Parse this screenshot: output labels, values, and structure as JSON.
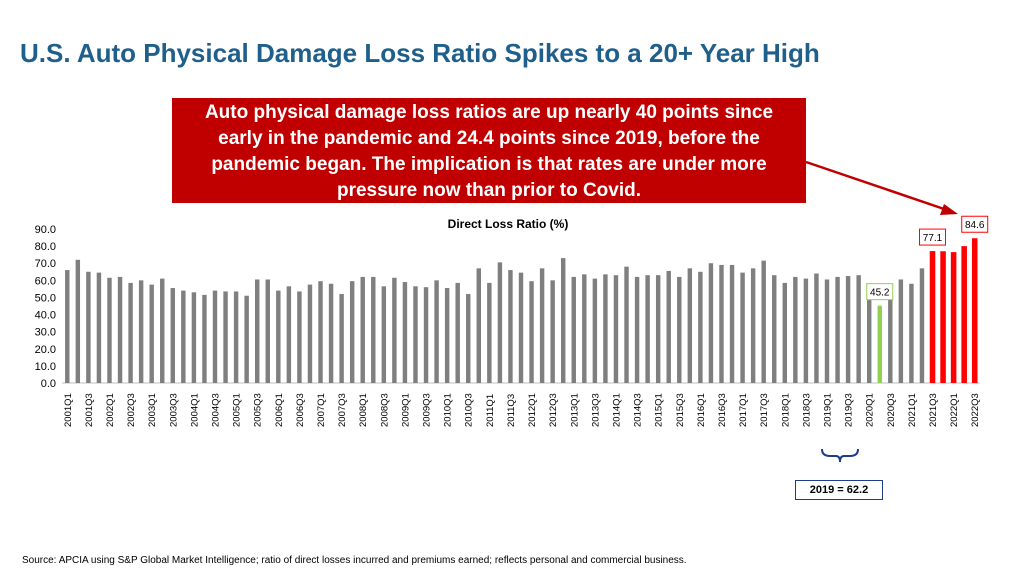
{
  "title": "U.S. Auto Physical Damage Loss Ratio Spikes to a 20+ Year High",
  "callout": "Auto physical damage loss ratios are up nearly 40 points since early in the pandemic and 24.4 points since 2019, before the pandemic began. The implication is that rates are under more pressure now than prior to Covid.",
  "note": "2019 = 62.2",
  "source": "Source: APCIA using S&P Global Market Intelligence; ratio of direct losses incurred and premiums earned; reflects personal and commercial business.",
  "colors": {
    "title": "#1f5f8b",
    "callout": "#c00000",
    "bar_default": "#7f7f7f",
    "bar_covid": "#92d050",
    "bar_recent": "#ff0000",
    "note_border": "#1f3c88"
  },
  "chart_data": {
    "type": "bar",
    "title": "Direct Loss Ratio (%)",
    "ylim": [
      0,
      90
    ],
    "yticks": [
      "0.0",
      "10.0",
      "20.0",
      "30.0",
      "40.0",
      "50.0",
      "60.0",
      "70.0",
      "80.0",
      "90.0"
    ],
    "grid": false,
    "categories": [
      "2001Q1",
      "2001Q2",
      "2001Q3",
      "2001Q4",
      "2002Q1",
      "2002Q2",
      "2002Q3",
      "2002Q4",
      "2003Q1",
      "2003Q2",
      "2003Q3",
      "2003Q4",
      "2004Q1",
      "2004Q2",
      "2004Q3",
      "2004Q4",
      "2005Q1",
      "2005Q2",
      "2005Q3",
      "2005Q4",
      "2006Q1",
      "2006Q2",
      "2006Q3",
      "2006Q4",
      "2007Q1",
      "2007Q2",
      "2007Q3",
      "2007Q4",
      "2008Q1",
      "2008Q2",
      "2008Q3",
      "2008Q4",
      "2009Q1",
      "2009Q2",
      "2009Q3",
      "2009Q4",
      "2010Q1",
      "2010Q2",
      "2010Q3",
      "2010Q4",
      "2011Q1",
      "2011Q2",
      "2011Q3",
      "2011Q4",
      "2012Q1",
      "2012Q2",
      "2012Q3",
      "2012Q4",
      "2013Q1",
      "2013Q2",
      "2013Q3",
      "2013Q4",
      "2014Q1",
      "2014Q2",
      "2014Q3",
      "2014Q4",
      "2015Q1",
      "2015Q2",
      "2015Q3",
      "2015Q4",
      "2016Q1",
      "2016Q2",
      "2016Q3",
      "2016Q4",
      "2017Q1",
      "2017Q2",
      "2017Q3",
      "2017Q4",
      "2018Q1",
      "2018Q2",
      "2018Q3",
      "2018Q4",
      "2019Q1",
      "2019Q2",
      "2019Q3",
      "2019Q4",
      "2020Q1",
      "2020Q2",
      "2020Q3",
      "2020Q4",
      "2021Q1",
      "2021Q2",
      "2021Q3",
      "2021Q4",
      "2022Q1",
      "2022Q2",
      "2022Q3"
    ],
    "xtick_labels": [
      "2001Q1",
      "",
      "2001Q3",
      "",
      "2002Q1",
      "",
      "2002Q3",
      "",
      "2003Q1",
      "",
      "2003Q3",
      "",
      "2004Q1",
      "",
      "2004Q3",
      "",
      "2005Q1",
      "",
      "2005Q3",
      "",
      "2006Q1",
      "",
      "2006Q3",
      "",
      "2007Q1",
      "",
      "2007Q3",
      "",
      "2008Q1",
      "",
      "2008Q3",
      "",
      "2009Q1",
      "",
      "2009Q3",
      "",
      "2010Q1",
      "",
      "2010Q3",
      "",
      "2011Q1",
      "",
      "2011Q3",
      "",
      "2012Q1",
      "",
      "2012Q3",
      "",
      "2013Q1",
      "",
      "2013Q3",
      "",
      "2014Q1",
      "",
      "2014Q3",
      "",
      "2015Q1",
      "",
      "2015Q3",
      "",
      "2016Q1",
      "",
      "2016Q3",
      "",
      "2017Q1",
      "",
      "2017Q3",
      "",
      "2018Q1",
      "",
      "2018Q3",
      "",
      "2019Q1",
      "",
      "2019Q3",
      "",
      "2020Q1",
      "",
      "2020Q3",
      "",
      "2021Q1",
      "",
      "2021Q3",
      "",
      "2022Q1",
      "",
      "2022Q3"
    ],
    "values": [
      66,
      72,
      65,
      64.5,
      61.5,
      62,
      58.5,
      60,
      57.5,
      61,
      55.5,
      54,
      53,
      51.5,
      54,
      53.5,
      53.5,
      51,
      60.5,
      60.5,
      54,
      56.5,
      53.5,
      57.5,
      59.5,
      58,
      52,
      59.5,
      62,
      62,
      56.5,
      61.5,
      59,
      56.5,
      56,
      60,
      55.5,
      58.5,
      52,
      67,
      58.5,
      70.5,
      66,
      64.5,
      59.5,
      67,
      60,
      73,
      62,
      63.5,
      61,
      63.5,
      63,
      68,
      62,
      63,
      63,
      65.5,
      62,
      67,
      65,
      70,
      69,
      69,
      64.5,
      67,
      71.5,
      63,
      58.5,
      62,
      61,
      64,
      60.5,
      62,
      62.5,
      63,
      55,
      45.2,
      57,
      60.5,
      58,
      67,
      77.1,
      77,
      76.5,
      80,
      84.6
    ],
    "bar_colors": [
      "default",
      "default",
      "default",
      "default",
      "default",
      "default",
      "default",
      "default",
      "default",
      "default",
      "default",
      "default",
      "default",
      "default",
      "default",
      "default",
      "default",
      "default",
      "default",
      "default",
      "default",
      "default",
      "default",
      "default",
      "default",
      "default",
      "default",
      "default",
      "default",
      "default",
      "default",
      "default",
      "default",
      "default",
      "default",
      "default",
      "default",
      "default",
      "default",
      "default",
      "default",
      "default",
      "default",
      "default",
      "default",
      "default",
      "default",
      "default",
      "default",
      "default",
      "default",
      "default",
      "default",
      "default",
      "default",
      "default",
      "default",
      "default",
      "default",
      "default",
      "default",
      "default",
      "default",
      "default",
      "default",
      "default",
      "default",
      "default",
      "default",
      "default",
      "default",
      "default",
      "default",
      "default",
      "default",
      "default",
      "default",
      "covid",
      "default",
      "default",
      "default",
      "default",
      "recent",
      "recent",
      "recent",
      "recent",
      "recent"
    ],
    "data_labels": [
      {
        "index": 77,
        "text": "45.2",
        "border": "#92d050"
      },
      {
        "index": 82,
        "text": "77.1",
        "border": "#ff0000"
      },
      {
        "index": 86,
        "text": "84.6",
        "border": "#ff0000"
      }
    ]
  }
}
